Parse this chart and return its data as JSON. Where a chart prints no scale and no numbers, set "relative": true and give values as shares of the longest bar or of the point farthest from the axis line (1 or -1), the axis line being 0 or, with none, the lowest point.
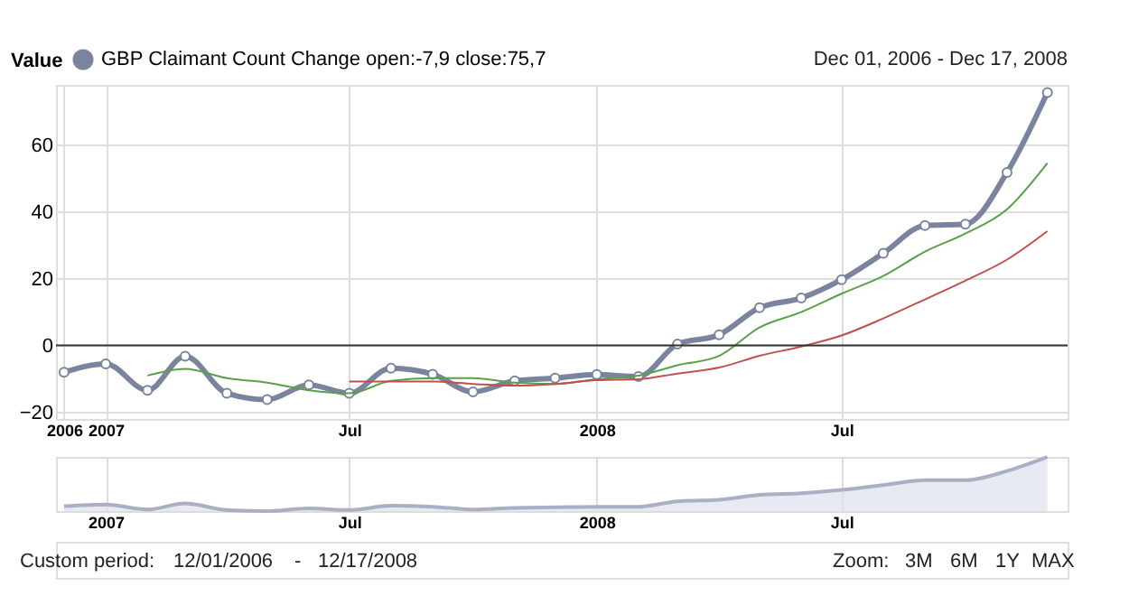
{
  "chart_data": [
    {
      "type": "line",
      "legend_title": "Value",
      "legend": "top left",
      "grid": true,
      "annotations": [
        "Dec 01, 2006 - Dec 17, 2008"
      ],
      "x": [
        "2006-12",
        "2007-01",
        "2007-02",
        "2007-03",
        "2007-04",
        "2007-05",
        "2007-06",
        "2007-07",
        "2007-08",
        "2007-09",
        "2007-10",
        "2007-11",
        "2007-12",
        "2008-01",
        "2008-02",
        "2008-03",
        "2008-04",
        "2008-05",
        "2008-06",
        "2008-07",
        "2008-08",
        "2008-09",
        "2008-10",
        "2008-11",
        "2008-12"
      ],
      "xlim": [
        "2006-11-25",
        "2008-12-16"
      ],
      "xticks": [
        {
          "value": "2006-12",
          "label": "2006"
        },
        {
          "value": "2007-01",
          "label": "2007"
        },
        {
          "value": "2007-07",
          "label": "Jul"
        },
        {
          "value": "2008-01",
          "label": "2008"
        },
        {
          "value": "2008-07",
          "label": "Jul"
        }
      ],
      "ylim": [
        -22,
        78
      ],
      "yticks": [
        -20,
        0,
        20,
        40,
        60
      ],
      "ref_lines": [
        {
          "axis": "y",
          "value": 0,
          "color": "#333333"
        }
      ],
      "series": [
        {
          "name": "GBP Claimant Count Change open:-7,9 close:75,7",
          "color": "#7a849e",
          "marker": "circle",
          "values": [
            -8.0,
            -5.5,
            -13.4,
            -3.2,
            -14.3,
            -16.2,
            -11.8,
            -14.3,
            -6.8,
            -8.6,
            -13.9,
            -10.6,
            -9.8,
            -8.7,
            -9.3,
            0.4,
            3.2,
            11.3,
            14.2,
            19.7,
            27.6,
            35.9,
            36.3,
            51.8,
            75.7
          ]
        },
        {
          "color": "#5aa04a",
          "marker": "none",
          "values": [
            null,
            null,
            -9.0,
            -7.0,
            -9.8,
            -11.1,
            -13.4,
            -14.3,
            -10.6,
            -9.8,
            -9.8,
            -11.1,
            -11.5,
            -10.1,
            -9.0,
            -5.9,
            -3.1,
            5.4,
            10.0,
            15.5,
            20.8,
            28.1,
            33.5,
            40.8,
            54.6
          ]
        },
        {
          "color": "#c0504d",
          "marker": "none",
          "values": [
            null,
            null,
            null,
            null,
            null,
            null,
            null,
            -10.8,
            -10.8,
            -10.8,
            -11.5,
            -12.0,
            -11.5,
            -10.4,
            -10.1,
            -8.4,
            -6.6,
            -3.1,
            -0.3,
            3.0,
            8.1,
            13.8,
            19.4,
            25.7,
            34.2
          ]
        }
      ]
    },
    {
      "type": "area",
      "relative": true,
      "grid": "x",
      "annotations": [
        "Custom period:",
        "12/01/2006",
        "-",
        "12/17/2008",
        "Zoom:",
        "3M",
        "6M",
        "1Y",
        "MAX"
      ],
      "x": [
        "2006-12",
        "2007-01",
        "2007-02",
        "2007-03",
        "2007-04",
        "2007-05",
        "2007-06",
        "2007-07",
        "2007-08",
        "2007-09",
        "2007-10",
        "2007-11",
        "2007-12",
        "2008-01",
        "2008-02",
        "2008-03",
        "2008-04",
        "2008-05",
        "2008-06",
        "2008-07",
        "2008-08",
        "2008-09",
        "2008-10",
        "2008-11",
        "2008-12"
      ],
      "xlim": [
        "2006-11-25",
        "2008-12-16"
      ],
      "xticks": [
        {
          "value": "2007-01",
          "label": "2007"
        },
        {
          "value": "2007-07",
          "label": "Jul"
        },
        {
          "value": "2008-01",
          "label": "2008"
        },
        {
          "value": "2008-07",
          "label": "Jul"
        }
      ],
      "series": [
        {
          "color": "#dde1ee",
          "values": [
            0.09,
            0.12,
            0.03,
            0.14,
            0.02,
            0,
            0.05,
            0.02,
            0.1,
            0.08,
            0.03,
            0.06,
            0.07,
            0.08,
            0.08,
            0.18,
            0.21,
            0.3,
            0.33,
            0.39,
            0.48,
            0.57,
            0.57,
            0.74,
            1
          ]
        }
      ]
    }
  ]
}
